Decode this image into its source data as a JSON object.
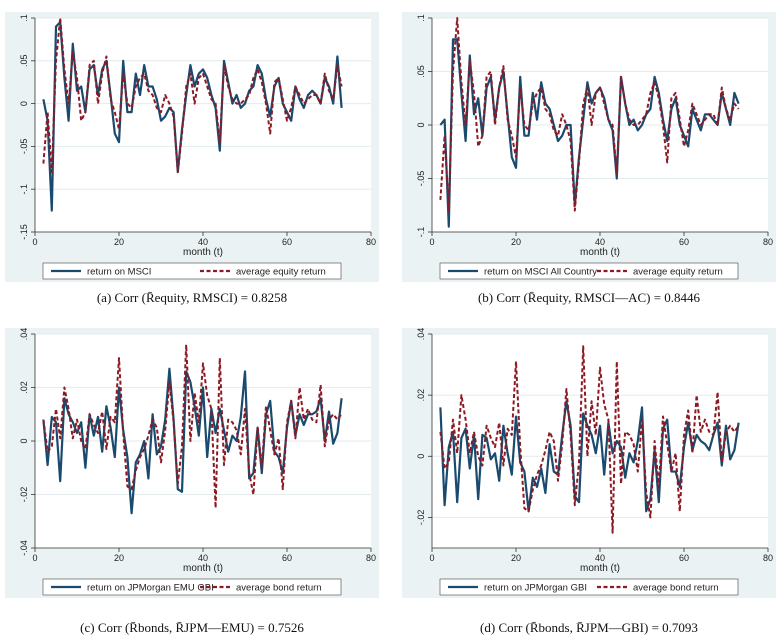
{
  "chart_data": [
    {
      "type": "line",
      "caption_prefix": "(a)",
      "caption_formula": "Corr (R̄equity, RMSCI) = 0.8258",
      "xlabel": "month (t)",
      "xlim": [
        0,
        80
      ],
      "ylim": [
        -0.15,
        0.1
      ],
      "xticks": [
        "0",
        "20",
        "40",
        "60",
        "80"
      ],
      "xtick_values": [
        0,
        20,
        40,
        60,
        80
      ],
      "yticks": [
        "-.15",
        "-.1",
        "-.05",
        "0",
        ".05",
        ".1"
      ],
      "ytick_values": [
        -0.15,
        -0.1,
        -0.05,
        0,
        0.05,
        0.1
      ],
      "x": [
        2,
        3,
        4,
        5,
        6,
        7,
        8,
        9,
        10,
        11,
        12,
        13,
        14,
        15,
        16,
        17,
        18,
        19,
        20,
        21,
        22,
        23,
        24,
        25,
        26,
        27,
        28,
        29,
        30,
        31,
        32,
        33,
        34,
        35,
        36,
        37,
        38,
        39,
        40,
        41,
        42,
        43,
        44,
        45,
        46,
        47,
        48,
        49,
        50,
        51,
        52,
        53,
        54,
        55,
        56,
        57,
        58,
        59,
        60,
        61,
        62,
        63,
        64,
        65,
        66,
        67,
        68,
        69,
        70,
        71,
        72,
        73
      ],
      "series": [
        {
          "name": "return on MSCI",
          "color": "#1a4a6e",
          "dash": "solid",
          "values": [
            0.005,
            -0.02,
            -0.125,
            0.09,
            0.095,
            0.03,
            -0.02,
            0.07,
            0.015,
            0.02,
            -0.01,
            0.04,
            0.045,
            0.01,
            0.04,
            0.05,
            0.01,
            -0.035,
            -0.045,
            0.05,
            -0.01,
            -0.01,
            0.035,
            0.01,
            0.045,
            0.02,
            0.02,
            0.005,
            -0.02,
            -0.015,
            -0.005,
            -0.01,
            -0.08,
            -0.03,
            0.01,
            0.045,
            0.02,
            0.035,
            0.04,
            0.03,
            0.01,
            -0.005,
            -0.055,
            0.05,
            0.025,
            0.0,
            0.01,
            -0.005,
            0.0,
            0.015,
            0.02,
            0.045,
            0.035,
            0.005,
            -0.015,
            0.02,
            0.03,
            0.0,
            -0.01,
            -0.02,
            0.02,
            0.005,
            -0.005,
            0.01,
            0.015,
            0.01,
            0.0,
            0.03,
            0.02,
            0.0,
            0.055,
            -0.005
          ]
        },
        {
          "name": "average equity return",
          "color": "#8b1a24",
          "dash": "dashed",
          "values": [
            -0.07,
            -0.01,
            -0.08,
            0.05,
            0.1,
            0.04,
            0.0,
            0.06,
            0.03,
            -0.02,
            -0.01,
            0.045,
            0.05,
            0.0,
            0.035,
            0.055,
            0.005,
            -0.01,
            -0.03,
            0.035,
            0.0,
            -0.005,
            0.02,
            0.03,
            0.035,
            0.015,
            0.01,
            -0.005,
            -0.01,
            0.01,
            0.0,
            -0.015,
            -0.08,
            -0.035,
            0.02,
            0.035,
            0.0,
            0.03,
            0.035,
            0.02,
            0.005,
            0.0,
            -0.045,
            0.045,
            0.02,
            0.005,
            0.0,
            0.0,
            0.005,
            0.01,
            0.03,
            0.04,
            0.025,
            0.0,
            -0.035,
            0.025,
            0.03,
            0.005,
            -0.02,
            -0.005,
            0.02,
            0.01,
            0.0,
            0.005,
            0.01,
            0.01,
            0.0,
            0.035,
            0.015,
            0.005,
            0.045,
            0.02
          ]
        }
      ],
      "legend_position": "bottom"
    },
    {
      "type": "line",
      "caption_prefix": "(b)",
      "caption_formula": "Corr (R̄equity, RMSCI—AC) = 0.8446",
      "xlabel": "month (t)",
      "xlim": [
        0,
        80
      ],
      "ylim": [
        -0.1,
        0.1
      ],
      "xticks": [
        "0",
        "20",
        "40",
        "60",
        "80"
      ],
      "xtick_values": [
        0,
        20,
        40,
        60,
        80
      ],
      "yticks": [
        "-.1",
        "-.05",
        "0",
        ".05",
        ".1"
      ],
      "ytick_values": [
        -0.1,
        -0.05,
        0,
        0.05,
        0.1
      ],
      "x": [
        2,
        3,
        4,
        5,
        6,
        7,
        8,
        9,
        10,
        11,
        12,
        13,
        14,
        15,
        16,
        17,
        18,
        19,
        20,
        21,
        22,
        23,
        24,
        25,
        26,
        27,
        28,
        29,
        30,
        31,
        32,
        33,
        34,
        35,
        36,
        37,
        38,
        39,
        40,
        41,
        42,
        43,
        44,
        45,
        46,
        47,
        48,
        49,
        50,
        51,
        52,
        53,
        54,
        55,
        56,
        57,
        58,
        59,
        60,
        61,
        62,
        63,
        64,
        65,
        66,
        67,
        68,
        69,
        70,
        71,
        72,
        73
      ],
      "series": [
        {
          "name": "return on MSCI All Country",
          "color": "#1a4a6e",
          "dash": "solid",
          "values": [
            0.0,
            0.005,
            -0.095,
            0.08,
            0.08,
            0.03,
            -0.015,
            0.065,
            0.01,
            0.025,
            -0.01,
            0.035,
            0.045,
            0.005,
            0.035,
            0.05,
            0.01,
            -0.03,
            -0.04,
            0.045,
            -0.01,
            -0.01,
            0.03,
            0.005,
            0.04,
            0.02,
            0.015,
            0.0,
            -0.015,
            -0.01,
            0.0,
            0.0,
            -0.075,
            -0.03,
            0.005,
            0.04,
            0.02,
            0.03,
            0.035,
            0.025,
            0.005,
            -0.005,
            -0.05,
            0.045,
            0.02,
            0.0,
            0.005,
            -0.005,
            0.0,
            0.01,
            0.015,
            0.045,
            0.03,
            0.005,
            -0.015,
            0.015,
            0.025,
            0.0,
            -0.01,
            -0.02,
            0.015,
            0.005,
            -0.005,
            0.01,
            0.01,
            0.005,
            0.0,
            0.03,
            0.015,
            0.0,
            0.03,
            0.02
          ]
        },
        {
          "name": "average equity return",
          "color": "#8b1a24",
          "dash": "dashed",
          "values": [
            -0.07,
            -0.01,
            -0.08,
            0.05,
            0.1,
            0.04,
            0.0,
            0.06,
            0.03,
            -0.02,
            -0.01,
            0.045,
            0.05,
            0.0,
            0.035,
            0.055,
            0.005,
            -0.01,
            -0.03,
            0.035,
            0.0,
            -0.005,
            0.02,
            0.03,
            0.035,
            0.015,
            0.01,
            -0.005,
            -0.01,
            0.01,
            0.0,
            -0.015,
            -0.08,
            -0.035,
            0.02,
            0.035,
            0.0,
            0.03,
            0.035,
            0.02,
            0.005,
            0.0,
            -0.045,
            0.045,
            0.02,
            0.005,
            0.0,
            0.0,
            0.005,
            0.01,
            0.03,
            0.04,
            0.025,
            0.0,
            -0.035,
            0.025,
            0.03,
            0.005,
            -0.02,
            -0.005,
            0.02,
            0.01,
            0.0,
            0.005,
            0.01,
            0.01,
            0.0,
            0.035,
            0.015,
            0.005,
            0.02,
            0.015
          ]
        }
      ],
      "legend_position": "bottom"
    },
    {
      "type": "line",
      "caption_prefix": "(c)",
      "caption_formula": "Corr (R̄bonds, R̄JPM—EMU) = 0.7526",
      "xlabel": "month (t)",
      "xlim": [
        0,
        80
      ],
      "ylim": [
        -0.04,
        0.04
      ],
      "xticks": [
        "0",
        "20",
        "40",
        "60",
        "80"
      ],
      "xtick_values": [
        0,
        20,
        40,
        60,
        80
      ],
      "yticks": [
        "-.04",
        "-.02",
        "0",
        ".02",
        ".04"
      ],
      "ytick_values": [
        -0.04,
        -0.02,
        0,
        0.02,
        0.04
      ],
      "x": [
        2,
        3,
        4,
        5,
        6,
        7,
        8,
        9,
        10,
        11,
        12,
        13,
        14,
        15,
        16,
        17,
        18,
        19,
        20,
        21,
        22,
        23,
        24,
        25,
        26,
        27,
        28,
        29,
        30,
        31,
        32,
        33,
        34,
        35,
        36,
        37,
        38,
        39,
        40,
        41,
        42,
        43,
        44,
        45,
        46,
        47,
        48,
        49,
        50,
        51,
        52,
        53,
        54,
        55,
        56,
        57,
        58,
        59,
        60,
        61,
        62,
        63,
        64,
        65,
        66,
        67,
        68,
        69,
        70,
        71,
        72,
        73
      ],
      "series": [
        {
          "name": "return on JPMorgan EMU GBI",
          "color": "#1a4a6e",
          "dash": "solid",
          "values": [
            0.008,
            -0.009,
            0.009,
            0.007,
            -0.015,
            0.016,
            0.01,
            0.007,
            0.003,
            0.007,
            -0.01,
            0.01,
            0.002,
            0.009,
            -0.004,
            0.013,
            0.005,
            -0.006,
            0.02,
            0.004,
            -0.006,
            -0.027,
            -0.008,
            -0.005,
            0.0,
            -0.014,
            0.01,
            -0.005,
            -0.002,
            0.008,
            0.027,
            0.008,
            -0.018,
            -0.019,
            0.026,
            0.022,
            0.013,
            0.002,
            0.02,
            -0.006,
            0.012,
            0.003,
            0.012,
            0.004,
            -0.004,
            0.002,
            0.0,
            0.009,
            0.026,
            -0.014,
            -0.012,
            0.005,
            -0.012,
            0.01,
            0.015,
            -0.004,
            -0.006,
            -0.012,
            0.005,
            0.015,
            0.002,
            0.01,
            0.006,
            0.01,
            0.01,
            0.011,
            0.016,
            0.0,
            0.011,
            -0.001,
            0.003,
            0.016
          ]
        },
        {
          "name": "average bond return",
          "color": "#8b1a24",
          "dash": "dashed",
          "values": [
            0.008,
            -0.004,
            -0.002,
            0.012,
            0.001,
            0.02,
            0.012,
            0.001,
            0.008,
            0.0,
            -0.003,
            0.01,
            0.006,
            0.003,
            0.011,
            -0.003,
            0.009,
            0.007,
            0.031,
            0.003,
            -0.017,
            -0.018,
            -0.011,
            -0.006,
            -0.003,
            0.002,
            0.008,
            0.005,
            -0.008,
            0.004,
            0.022,
            0.007,
            -0.016,
            -0.002,
            0.036,
            0.0,
            0.018,
            0.007,
            0.029,
            0.017,
            0.012,
            -0.025,
            0.031,
            -0.009,
            0.008,
            0.007,
            0.004,
            -0.005,
            0.012,
            -0.012,
            -0.02,
            0.005,
            -0.01,
            0.013,
            0.004,
            -0.005,
            0.001,
            -0.018,
            0.007,
            0.015,
            0.001,
            0.02,
            0.008,
            0.012,
            0.008,
            0.007,
            0.021,
            -0.002,
            0.008,
            0.01,
            0.008,
            0.01
          ]
        }
      ],
      "legend_position": "bottom"
    },
    {
      "type": "line",
      "caption_prefix": "(d)",
      "caption_formula": "Corr (R̄bonds, R̄JPM—GBI) = 0.7093",
      "xlabel": "month (t)",
      "xlim": [
        0,
        80
      ],
      "ylim": [
        -0.03,
        0.04
      ],
      "xticks": [
        "0",
        "20",
        "40",
        "60",
        "80"
      ],
      "xtick_values": [
        0,
        20,
        40,
        60,
        80
      ],
      "yticks": [
        "-.02",
        "0",
        ".02",
        ".04"
      ],
      "ytick_values": [
        -0.02,
        0,
        0.02,
        0.04
      ],
      "x": [
        2,
        3,
        4,
        5,
        6,
        7,
        8,
        9,
        10,
        11,
        12,
        13,
        14,
        15,
        16,
        17,
        18,
        19,
        20,
        21,
        22,
        23,
        24,
        25,
        26,
        27,
        28,
        29,
        30,
        31,
        32,
        33,
        34,
        35,
        36,
        37,
        38,
        39,
        40,
        41,
        42,
        43,
        44,
        45,
        46,
        47,
        48,
        49,
        50,
        51,
        52,
        53,
        54,
        55,
        56,
        57,
        58,
        59,
        60,
        61,
        62,
        63,
        64,
        65,
        66,
        67,
        68,
        69,
        70,
        71,
        72,
        73
      ],
      "series": [
        {
          "name": "return on JPMorgan GBI",
          "color": "#1a4a6e",
          "dash": "solid",
          "values": [
            0.016,
            -0.016,
            0.003,
            0.008,
            -0.015,
            0.006,
            0.009,
            -0.004,
            0.007,
            -0.014,
            0.007,
            0.006,
            -0.001,
            0.001,
            -0.008,
            0.01,
            0.001,
            -0.006,
            0.013,
            -0.002,
            -0.005,
            -0.018,
            -0.007,
            -0.01,
            -0.004,
            -0.012,
            0.004,
            -0.005,
            -0.006,
            0.007,
            0.018,
            0.01,
            -0.013,
            -0.015,
            0.014,
            0.01,
            0.007,
            0.001,
            0.01,
            -0.006,
            0.011,
            0.001,
            0.005,
            0.003,
            -0.007,
            0.001,
            -0.002,
            0.005,
            0.016,
            -0.018,
            -0.014,
            0.002,
            -0.015,
            0.009,
            0.012,
            -0.005,
            -0.005,
            -0.01,
            0.003,
            0.011,
            0.002,
            0.007,
            0.005,
            0.004,
            0.002,
            0.007,
            0.011,
            -0.003,
            0.01,
            -0.001,
            0.002,
            0.011
          ]
        },
        {
          "name": "average bond return",
          "color": "#8b1a24",
          "dash": "dashed",
          "values": [
            0.008,
            -0.004,
            -0.002,
            0.012,
            0.001,
            0.02,
            0.012,
            0.001,
            0.008,
            0.0,
            -0.003,
            0.01,
            0.006,
            0.003,
            0.011,
            -0.003,
            0.009,
            0.007,
            0.031,
            0.003,
            -0.017,
            -0.018,
            -0.011,
            -0.006,
            -0.003,
            0.002,
            0.008,
            0.005,
            -0.008,
            0.004,
            0.022,
            0.007,
            -0.016,
            -0.002,
            0.036,
            0.0,
            0.018,
            0.007,
            0.029,
            0.017,
            0.012,
            -0.025,
            0.031,
            -0.009,
            0.008,
            0.007,
            0.004,
            -0.005,
            0.012,
            -0.012,
            -0.02,
            0.005,
            -0.01,
            0.013,
            0.004,
            -0.005,
            0.001,
            -0.018,
            0.007,
            0.015,
            0.001,
            0.02,
            0.008,
            0.012,
            0.008,
            0.007,
            0.021,
            -0.002,
            0.008,
            0.01,
            0.008,
            0.01
          ]
        }
      ],
      "legend_position": "bottom"
    }
  ]
}
